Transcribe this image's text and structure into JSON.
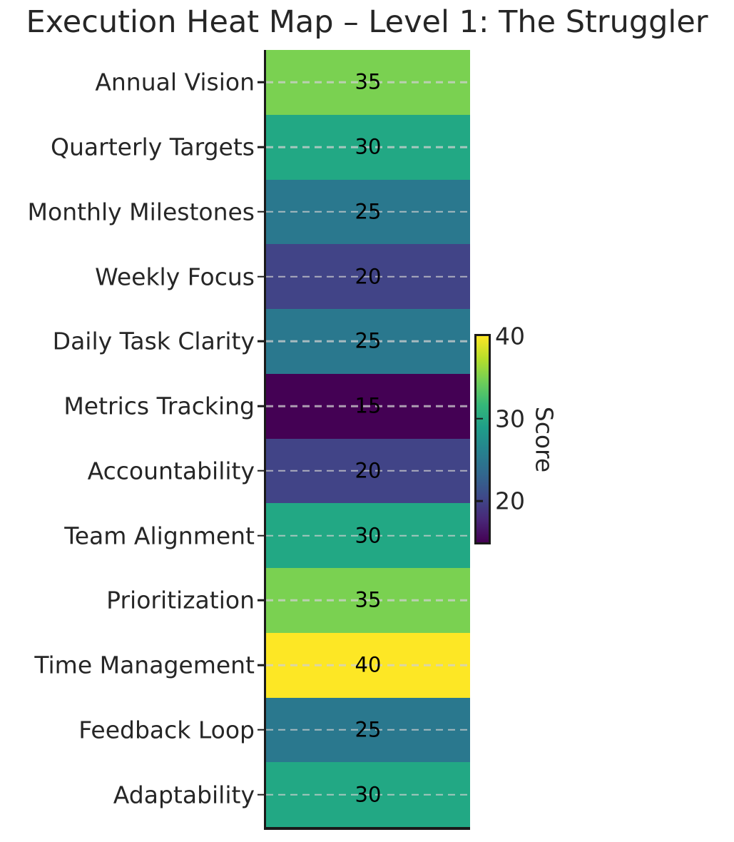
{
  "chart_data": {
    "type": "heatmap",
    "title": "Execution Heat Map – Level 1: The Struggler",
    "categories": [
      "Annual Vision",
      "Quarterly Targets",
      "Monthly Milestones",
      "Weekly Focus",
      "Daily Task Clarity",
      "Metrics Tracking",
      "Accountability",
      "Team Alignment",
      "Prioritization",
      "Time Management",
      "Feedback Loop",
      "Adaptability"
    ],
    "values": [
      35,
      30,
      25,
      20,
      25,
      15,
      20,
      30,
      35,
      40,
      25,
      30
    ],
    "cell_colors": [
      "#7ad151",
      "#22a884",
      "#2a788e",
      "#414487",
      "#2a788e",
      "#440154",
      "#414487",
      "#22a884",
      "#7ad151",
      "#fde725",
      "#2a788e",
      "#22a884"
    ],
    "annotation_color": "#000000",
    "colormap": "viridis",
    "viridis_stops": [
      "#440154",
      "#482878",
      "#3e4a89",
      "#31688e",
      "#26828e",
      "#1f9e89",
      "#35b779",
      "#6ece58",
      "#b5de2b",
      "#fde725"
    ],
    "grid": "dashed horizontal lines at row centers",
    "legend_position": "colorbar right",
    "colorbar": {
      "label": "Score",
      "ticks": [
        40,
        30,
        20
      ],
      "vmin": 15,
      "vmax": 40
    }
  }
}
